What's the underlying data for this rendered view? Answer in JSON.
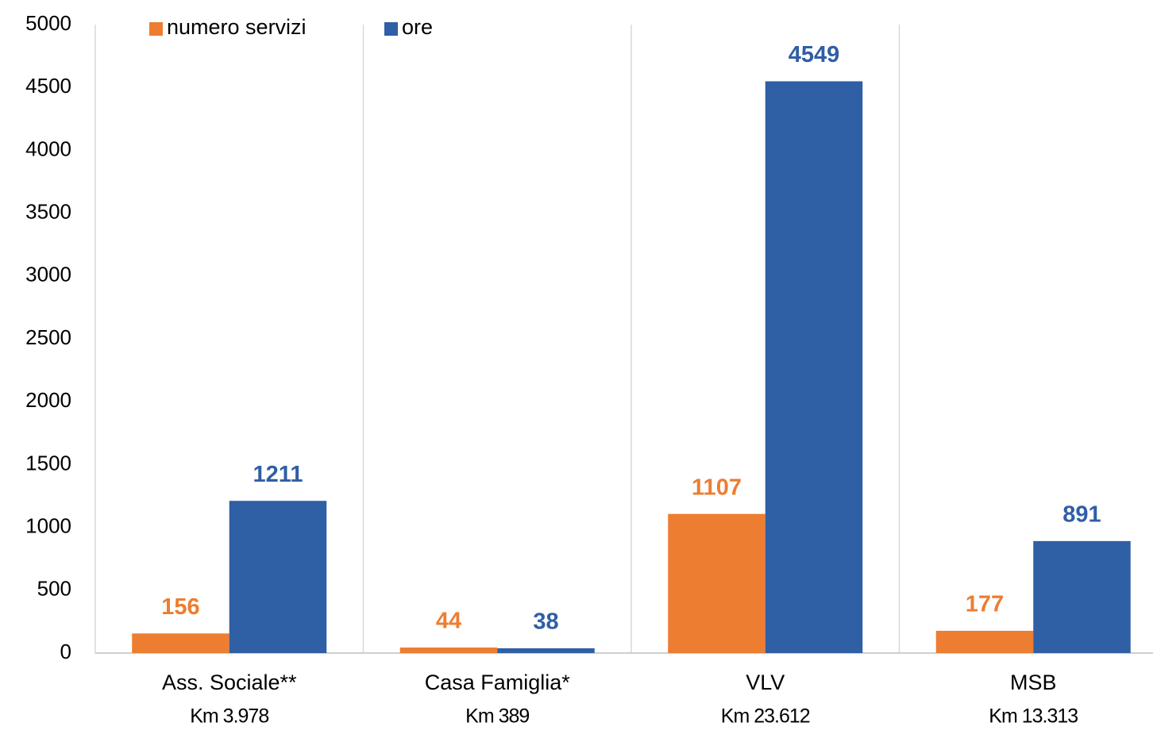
{
  "chart_data": {
    "type": "bar",
    "categories": [
      "Ass. Sociale**",
      "Casa Famiglia*",
      "VLV",
      "MSB"
    ],
    "category_notes": [
      "Km 3.978",
      "Km 389",
      "Km 23.612",
      "Km 13.313"
    ],
    "series": [
      {
        "name": "numero servizi",
        "color": "#ed7d31",
        "values": [
          156,
          44,
          1107,
          177
        ]
      },
      {
        "name": "ore",
        "color": "#2f5fa5",
        "values": [
          1211,
          38,
          4549,
          891
        ]
      }
    ],
    "ylim": [
      0,
      5000
    ],
    "yticks": [
      0,
      500,
      1000,
      1500,
      2000,
      2500,
      3000,
      3500,
      4000,
      4500,
      5000
    ],
    "grid": false,
    "legend": "top"
  }
}
